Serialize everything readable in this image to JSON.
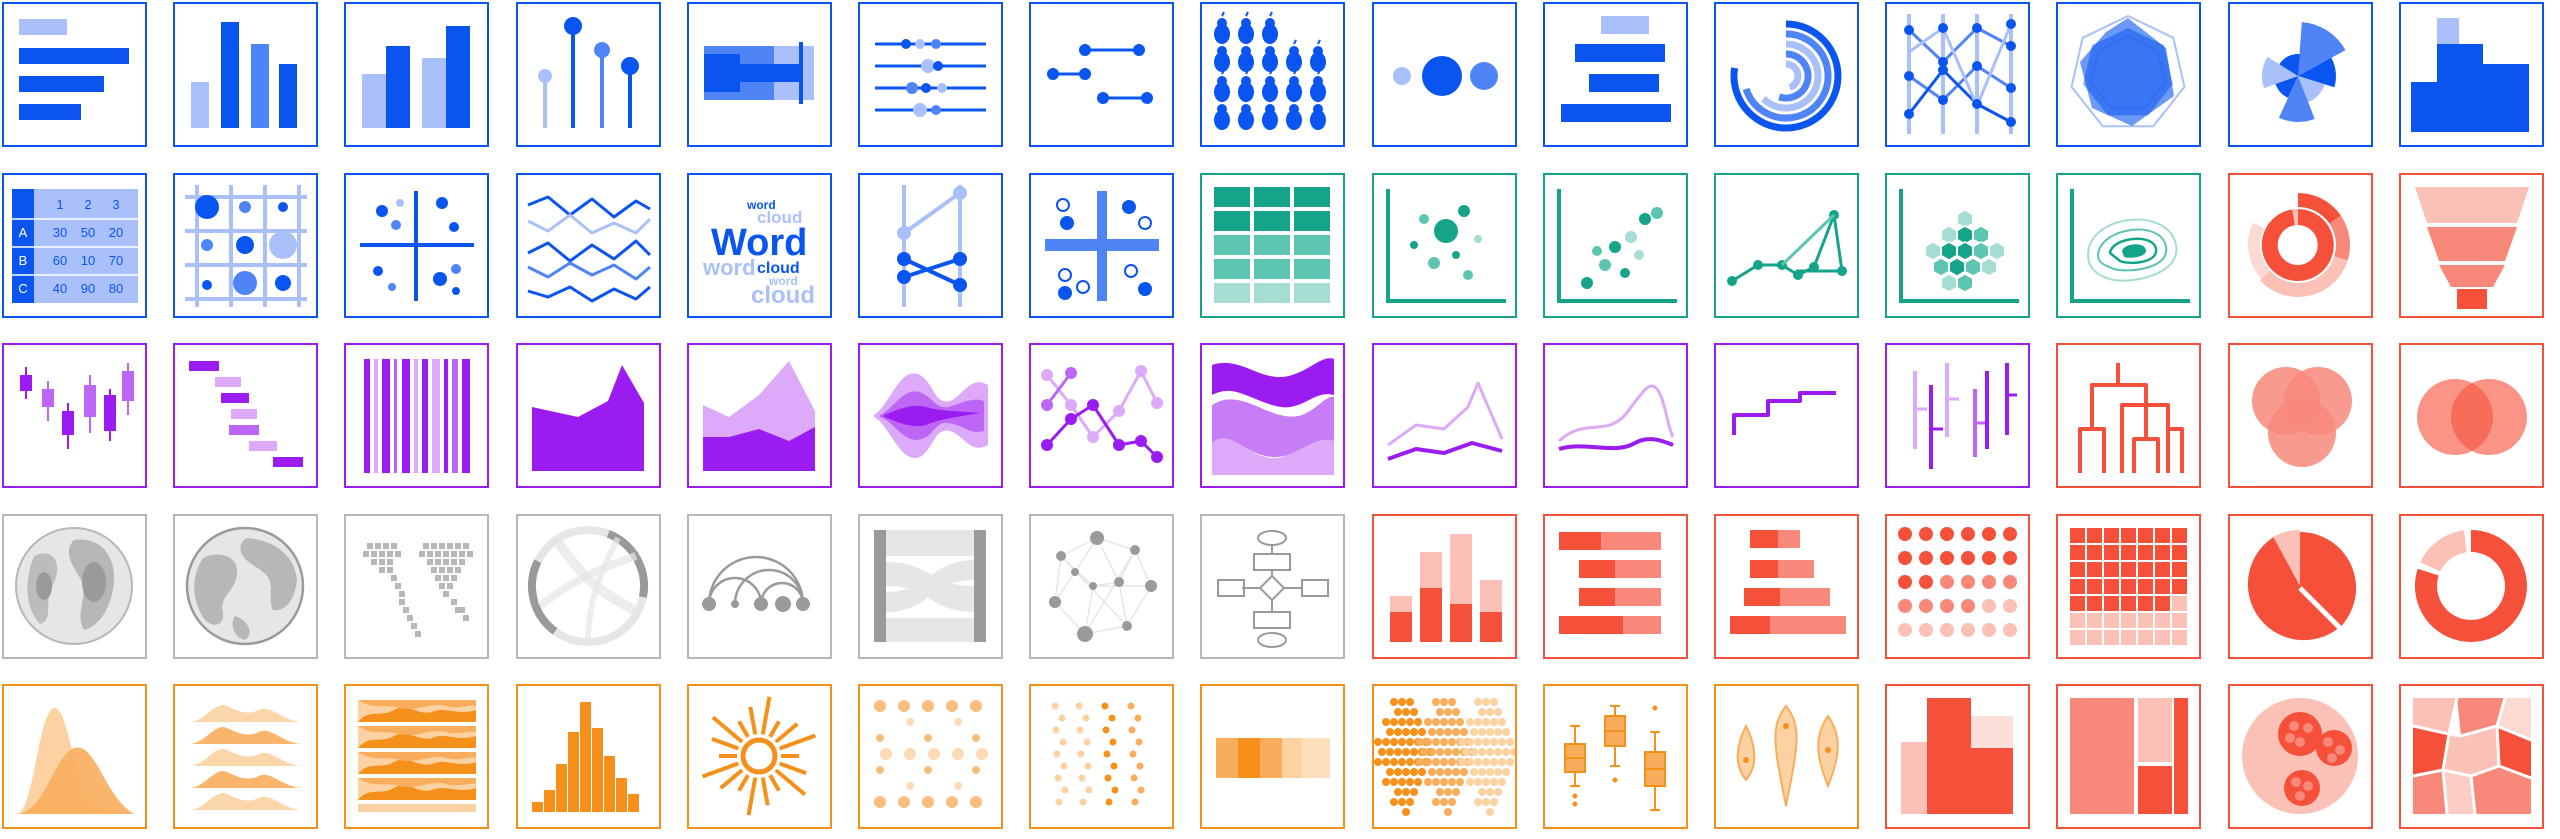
{
  "palette": {
    "blue": "#0a55f0",
    "blue_light": "#a9c0fa",
    "blue_mid": "#4f84f6",
    "teal": "#15a38a",
    "teal_light": "#a6ddd2",
    "teal_mid": "#5cc4b1",
    "purple": "#9b1cf0",
    "purple_light": "#dcaaf8",
    "purple_mid": "#bd66f5",
    "red": "#f5503a",
    "red_light": "#fbc0b6",
    "red_mid": "#f8887a",
    "grey": "#b7b7b7",
    "grey_light": "#e6e6e6",
    "grey_mid": "#9a9a9a",
    "orange": "#f5901a",
    "orange_light": "#fcd2a2",
    "orange_mid": "#f8ad5c"
  },
  "texts": {
    "table_headers": [
      "1",
      "2",
      "3"
    ],
    "table_rows": [
      {
        "label": "A",
        "values": [
          "30",
          "50",
          "20"
        ]
      },
      {
        "label": "B",
        "values": [
          "60",
          "10",
          "70"
        ]
      },
      {
        "label": "C",
        "values": [
          "40",
          "90",
          "80"
        ]
      }
    ],
    "wordcloud": [
      "word",
      "cloud",
      "Word",
      "cloud",
      "word",
      "word",
      "cloud"
    ]
  },
  "rows": [
    {
      "color": "blue",
      "icons": [
        "bar-horizontal-icon",
        "bar-vertical-icon",
        "grouped-bar-icon",
        "lollipop-icon",
        "bullet-icon",
        "dot-strip-icon",
        "dumbbell-icon",
        "pictogram-icon",
        "bubble-row-icon",
        "diverging-bar-icon",
        "radial-bar-icon",
        "parallel-coordinates-icon",
        "radar-icon",
        "nightingale-rose-icon",
        "step-area-icon"
      ]
    },
    {
      "color": "blue",
      "icons": [
        "table-icon",
        "bubble-matrix-icon",
        "quadrant-scatter-icon",
        "spaghetti-lines-icon",
        "word-cloud-icon",
        "slope-chart-icon",
        "quadrant-dots-icon",
        "heatmap-icon",
        "bubble-scatter-icon",
        "scatter-icon",
        "connected-scatter-icon",
        "hexbin-icon",
        "contour-icon",
        "sunburst-icon",
        "funnel-icon"
      ]
    },
    {
      "color": "purple",
      "icons": [
        "candlestick-icon",
        "gantt-icon",
        "barcode-icon",
        "area-icon",
        "stacked-area-icon",
        "streamgraph-icon",
        "line-dots-icon",
        "stream-wave-icon",
        "line-chart-icon",
        "smooth-line-icon",
        "step-line-icon",
        "timeline-icon",
        "dendrogram-icon",
        "venn-three-icon",
        "venn-two-icon"
      ]
    },
    {
      "color": "grey",
      "icons": [
        "globe-heatmap-icon",
        "globe-icon",
        "dot-map-icon",
        "chord-icon",
        "arc-diagram-icon",
        "sankey-icon",
        "network-icon",
        "flowchart-icon",
        "stacked-column-icon",
        "stacked-bar-icon",
        "stacked-bar-percent-icon",
        "dot-matrix-icon",
        "waffle-icon",
        "pie-icon",
        "donut-icon"
      ]
    },
    {
      "color": "orange",
      "icons": [
        "density-icon",
        "ridgeline-icon",
        "horizon-icon",
        "histogram-icon",
        "sunburst-rays-icon",
        "strip-bubbles-icon",
        "jitter-icon",
        "heat-strip-icon",
        "beeswarm-icon",
        "box-plot-icon",
        "violin-icon",
        "marimekko-icon",
        "treemap-icon",
        "circle-packing-icon",
        "voronoi-icon"
      ]
    }
  ],
  "row_color_overrides": {
    "1": {
      "7": "teal",
      "8": "teal",
      "9": "teal",
      "10": "teal",
      "11": "teal",
      "12": "teal",
      "13": "red",
      "14": "red"
    },
    "2": {
      "12": "red",
      "13": "red",
      "14": "red"
    },
    "3": {
      "8": "red",
      "9": "red",
      "10": "red",
      "11": "red",
      "12": "red",
      "13": "red",
      "14": "red"
    },
    "4": {
      "11": "red",
      "12": "red",
      "13": "red",
      "14": "red"
    }
  }
}
